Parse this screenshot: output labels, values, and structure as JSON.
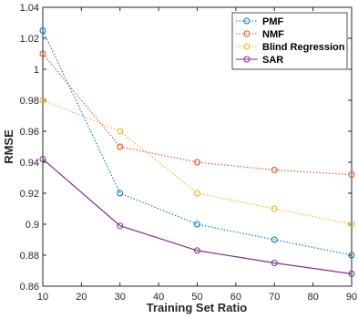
{
  "chart_data": {
    "type": "line",
    "xlabel": "Training Set Ratio",
    "ylabel": "RMSE",
    "xlim": [
      10,
      90
    ],
    "ylim": [
      0.86,
      1.04
    ],
    "xticks": [
      "10",
      "20",
      "30",
      "40",
      "50",
      "60",
      "70",
      "80",
      "90"
    ],
    "yticks": [
      "0.86",
      "0.88",
      "0.9",
      "0.92",
      "0.94",
      "0.96",
      "0.98",
      "1",
      "1.02",
      "1.04"
    ],
    "grid": false,
    "legend_position": "top-right",
    "x": [
      10,
      30,
      50,
      70,
      90
    ],
    "series": [
      {
        "name": "PMF",
        "color": "#0072BD",
        "dash": "dotted",
        "values": [
          1.025,
          0.92,
          0.9,
          0.89,
          0.88
        ]
      },
      {
        "name": "NMF",
        "color": "#D95319",
        "dash": "dotted",
        "values": [
          1.01,
          0.95,
          0.94,
          0.935,
          0.932
        ]
      },
      {
        "name": "Blind Regression",
        "color": "#EDB120",
        "dash": "dotted",
        "values": [
          0.98,
          0.96,
          0.92,
          0.91,
          0.9
        ]
      },
      {
        "name": "SAR",
        "color": "#7E2F8E",
        "dash": "solid",
        "values": [
          0.942,
          0.899,
          0.883,
          0.875,
          0.868
        ]
      }
    ]
  }
}
